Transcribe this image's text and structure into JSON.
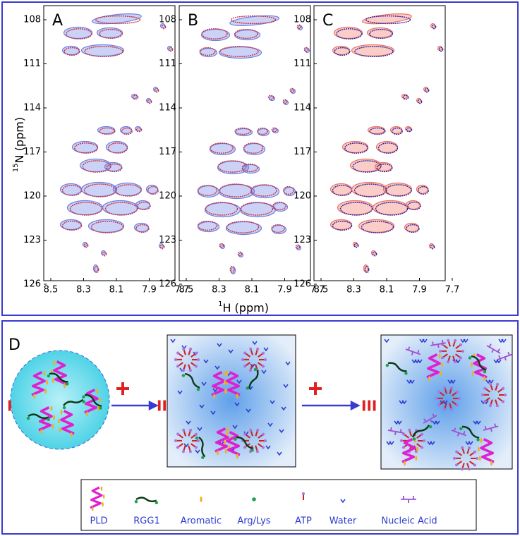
{
  "panels": [
    {
      "label": "A"
    },
    {
      "label": "B"
    },
    {
      "label": "C"
    }
  ],
  "y_axis": {
    "sup": "15",
    "label": "N (ppm)",
    "ticks": [
      108,
      111,
      114,
      117,
      120,
      123,
      126
    ]
  },
  "x_axis": {
    "sup": "1",
    "label": "H (ppm)",
    "ticks": [
      8.5,
      8.3,
      8.1,
      7.9,
      7.7
    ]
  },
  "diagram": {
    "label": "D",
    "stages": [
      "I",
      "II",
      "III"
    ],
    "legend": [
      "PLD",
      "RGG1",
      "Aromatic",
      "Arg/Lys",
      "ATP",
      "Water",
      "Nucleic Acid"
    ]
  }
}
